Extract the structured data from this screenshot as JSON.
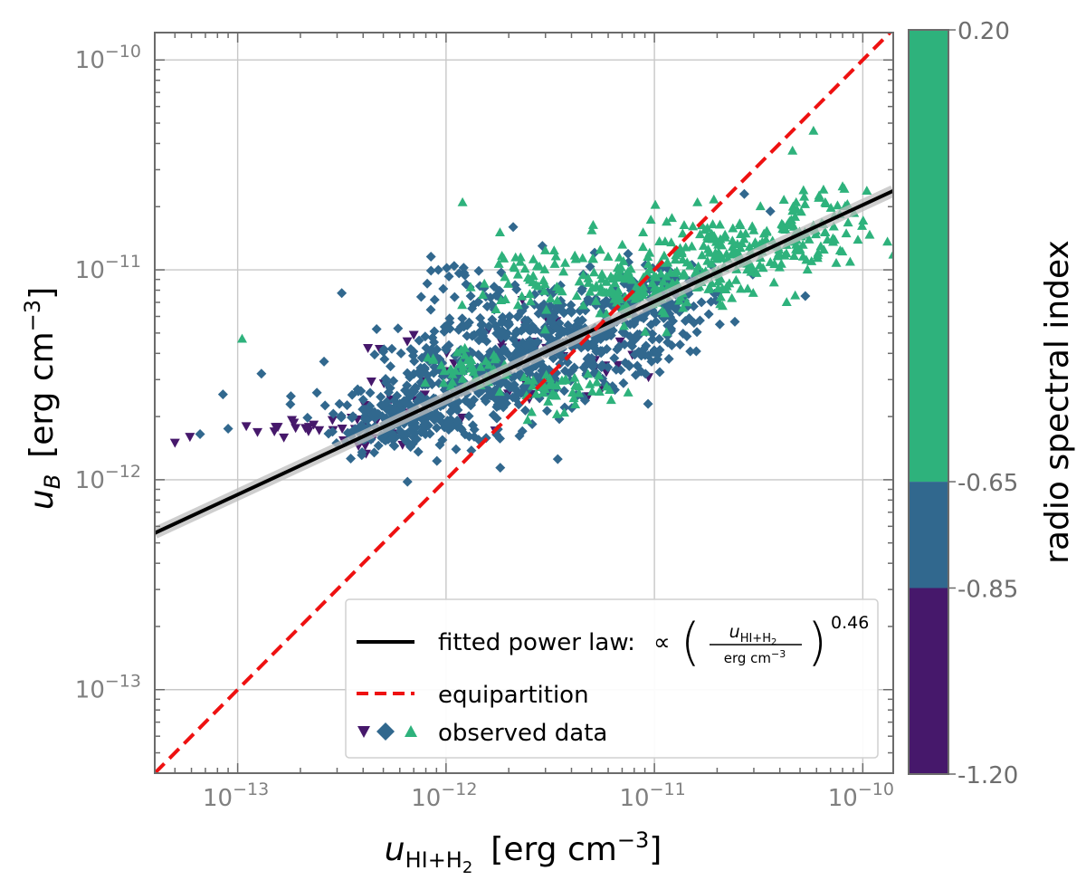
{
  "chart_data": {
    "type": "scatter",
    "x_scale": "log",
    "y_scale": "log",
    "xlim": [
      4e-14,
      1.4e-10
    ],
    "ylim": [
      4e-14,
      1.35e-10
    ],
    "x_ticks": [
      {
        "value": 1e-13,
        "mant": "10",
        "exp": "−13"
      },
      {
        "value": 1e-12,
        "mant": "10",
        "exp": "−12"
      },
      {
        "value": 1e-11,
        "mant": "10",
        "exp": "−11"
      },
      {
        "value": 1e-10,
        "mant": "10",
        "exp": "−10"
      }
    ],
    "y_ticks": [
      {
        "value": 1e-13,
        "mant": "10",
        "exp": "−13"
      },
      {
        "value": 1e-12,
        "mant": "10",
        "exp": "−12"
      },
      {
        "value": 1e-11,
        "mant": "10",
        "exp": "−11"
      },
      {
        "value": 1e-10,
        "mant": "10",
        "exp": "−10"
      }
    ],
    "xlabel": {
      "sym": "u",
      "sub1": "HI+H",
      "sub2": "2",
      "unit_pre": "[erg cm",
      "unit_exp": "−3",
      "unit_post": "]"
    },
    "ylabel": {
      "sym": "u",
      "sub": "B",
      "unit_pre": "[erg cm",
      "unit_exp": "−3",
      "unit_post": "]"
    },
    "grid": true,
    "fit": {
      "type": "power law",
      "exponent": 0.46,
      "norm_at_1e-12": 2.45e-12,
      "color": "#000000"
    },
    "equipartition": {
      "slope": 1,
      "color": "#ee1111"
    },
    "series": [
      {
        "name": "spectral index -1.20 to -0.85",
        "marker": "triangle-down",
        "color": "#46186b",
        "clusters": [
          {
            "x": 2e-13,
            "y": 1.75e-12,
            "sx": 0.1,
            "sy": 0.03,
            "n": 12
          },
          {
            "x": 4.5e-13,
            "y": 1.8e-12,
            "sx": 0.12,
            "sy": 0.05,
            "n": 22
          },
          {
            "x": 1.2e-12,
            "y": 3e-12,
            "sx": 0.22,
            "sy": 0.12,
            "n": 28
          },
          {
            "x": 3.2e-12,
            "y": 3.6e-12,
            "sx": 0.22,
            "sy": 0.12,
            "n": 28
          }
        ],
        "points": [
          {
            "x": 5e-14,
            "y": 1.5e-12
          },
          {
            "x": 5.9e-14,
            "y": 1.6e-12
          },
          {
            "x": 1.1e-13,
            "y": 1.8e-12
          },
          {
            "x": 1.5e-13,
            "y": 1.7e-12
          },
          {
            "x": 3.8e-13,
            "y": 1.45e-12
          },
          {
            "x": 7e-13,
            "y": 4.9e-12
          },
          {
            "x": 4.8e-13,
            "y": 4.2e-12
          },
          {
            "x": 1.6e-12,
            "y": 5.2e-12
          }
        ]
      },
      {
        "name": "spectral index -0.85 to -0.65",
        "marker": "diamond",
        "color": "#31688e",
        "clusters": [
          {
            "x": 5.5e-13,
            "y": 1.9e-12,
            "sx": 0.14,
            "sy": 0.07,
            "n": 160
          },
          {
            "x": 1.1e-12,
            "y": 2.7e-12,
            "sx": 0.22,
            "sy": 0.13,
            "n": 260
          },
          {
            "x": 2.5e-12,
            "y": 3.8e-12,
            "sx": 0.24,
            "sy": 0.13,
            "n": 240
          },
          {
            "x": 5e-12,
            "y": 5.2e-12,
            "sx": 0.22,
            "sy": 0.11,
            "n": 180
          },
          {
            "x": 1e-11,
            "y": 7.2e-12,
            "sx": 0.18,
            "sy": 0.1,
            "n": 110
          },
          {
            "x": 1.5e-12,
            "y": 7.5e-12,
            "sx": 0.18,
            "sy": 0.09,
            "n": 40
          }
        ],
        "points": [
          {
            "x": 6.6e-14,
            "y": 1.65e-12
          },
          {
            "x": 9e-14,
            "y": 1.75e-12
          },
          {
            "x": 1.3e-13,
            "y": 3.2e-12
          },
          {
            "x": 8.5e-14,
            "y": 2.55e-12
          },
          {
            "x": 1.8e-13,
            "y": 2.5e-12
          },
          {
            "x": 2.4e-13,
            "y": 2.6e-12
          },
          {
            "x": 2.1e-12,
            "y": 1.6e-11
          },
          {
            "x": 2.9e-12,
            "y": 1.3e-11
          },
          {
            "x": 2.7e-11,
            "y": 2.3e-11
          },
          {
            "x": 3.6e-11,
            "y": 1.9e-11
          },
          {
            "x": 5.3e-11,
            "y": 7.5e-12
          },
          {
            "x": 2.6e-11,
            "y": 1.1e-11
          }
        ]
      },
      {
        "name": "spectral index -0.65 to 0.20",
        "marker": "triangle-up",
        "color": "#2eb27c",
        "clusters": [
          {
            "x": 1.3e-12,
            "y": 3.4e-12,
            "sx": 0.1,
            "sy": 0.04,
            "n": 50
          },
          {
            "x": 3.5e-12,
            "y": 2.7e-12,
            "sx": 0.12,
            "sy": 0.05,
            "n": 45
          },
          {
            "x": 3e-12,
            "y": 9e-12,
            "sx": 0.2,
            "sy": 0.1,
            "n": 70
          },
          {
            "x": 8e-12,
            "y": 8e-12,
            "sx": 0.14,
            "sy": 0.08,
            "n": 90
          },
          {
            "x": 2e-11,
            "y": 1.15e-11,
            "sx": 0.2,
            "sy": 0.1,
            "n": 170
          },
          {
            "x": 5e-11,
            "y": 1.5e-11,
            "sx": 0.16,
            "sy": 0.1,
            "n": 90
          }
        ],
        "points": [
          {
            "x": 1.05e-13,
            "y": 4.7e-12
          },
          {
            "x": 1.2e-12,
            "y": 2.1e-11
          },
          {
            "x": 5.8e-11,
            "y": 4.6e-11
          },
          {
            "x": 4.6e-11,
            "y": 3.7e-11
          },
          {
            "x": 6.6e-11,
            "y": 2.1e-11
          },
          {
            "x": 8e-11,
            "y": 2.5e-11
          },
          {
            "x": 6.2e-12,
            "y": 2.4e-12
          },
          {
            "x": 4.3e-11,
            "y": 1.2e-11
          }
        ]
      }
    ],
    "colorbar": {
      "label": "radio spectral index",
      "segments": [
        {
          "from": -1.2,
          "to": -0.85,
          "color": "#46186b"
        },
        {
          "from": -0.85,
          "to": -0.65,
          "color": "#31688e"
        },
        {
          "from": -0.65,
          "to": 0.2,
          "color": "#2eb27c"
        }
      ],
      "tick_labels": [
        "0.20",
        "-0.65",
        "-0.85",
        "-1.20"
      ]
    },
    "legend": {
      "placement": "lower-right",
      "fit_label": "fitted power law:",
      "propto": "∝",
      "frac_num_sym": "u",
      "frac_num_sub1": "HI+H",
      "frac_num_sub2": "2",
      "frac_den": "erg cm",
      "frac_den_exp": "−3",
      "exponent": "0.46",
      "equip_label": "equipartition",
      "data_label": "observed data"
    }
  }
}
